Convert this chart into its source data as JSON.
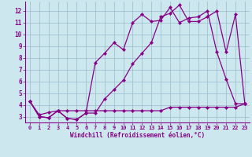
{
  "xlabel": "Windchill (Refroidissement éolien,°C)",
  "bg_color": "#cce8ee",
  "grid_color": "#99bbcc",
  "line_color": "#880088",
  "xlim": [
    -0.5,
    23.5
  ],
  "ylim": [
    2.5,
    12.8
  ],
  "yticks": [
    3,
    4,
    5,
    6,
    7,
    8,
    9,
    10,
    11,
    12
  ],
  "xticks": [
    0,
    1,
    2,
    3,
    4,
    5,
    6,
    7,
    8,
    9,
    10,
    11,
    12,
    13,
    14,
    15,
    16,
    17,
    18,
    19,
    20,
    21,
    22,
    23
  ],
  "series1_x": [
    0,
    1,
    2,
    3,
    4,
    5,
    6,
    7,
    8,
    9,
    10,
    11,
    12,
    13,
    14,
    15,
    16,
    17,
    18,
    19,
    20,
    21,
    22,
    23
  ],
  "series1_y": [
    4.3,
    3.0,
    2.9,
    3.5,
    2.85,
    2.75,
    3.3,
    3.3,
    4.5,
    5.3,
    6.1,
    7.5,
    8.4,
    9.3,
    11.5,
    11.8,
    12.5,
    11.1,
    11.1,
    11.5,
    12.0,
    8.5,
    11.7,
    4.1
  ],
  "series2_x": [
    0,
    1,
    2,
    3,
    4,
    5,
    6,
    7,
    8,
    9,
    10,
    11,
    12,
    13,
    14,
    15,
    16,
    17,
    18,
    19,
    20,
    21,
    22,
    23
  ],
  "series2_y": [
    4.3,
    3.0,
    2.9,
    3.5,
    2.85,
    2.75,
    3.3,
    7.6,
    8.4,
    9.3,
    8.7,
    11.0,
    11.7,
    11.1,
    11.2,
    12.3,
    11.0,
    11.4,
    11.5,
    12.0,
    8.5,
    6.2,
    4.1,
    4.1
  ],
  "series3_x": [
    0,
    1,
    2,
    3,
    4,
    5,
    6,
    7,
    8,
    9,
    10,
    11,
    12,
    13,
    14,
    15,
    16,
    17,
    18,
    19,
    20,
    21,
    22,
    23
  ],
  "series3_y": [
    4.3,
    3.15,
    3.35,
    3.5,
    3.5,
    3.5,
    3.5,
    3.5,
    3.5,
    3.5,
    3.5,
    3.5,
    3.5,
    3.5,
    3.5,
    3.8,
    3.8,
    3.8,
    3.8,
    3.8,
    3.8,
    3.8,
    3.8,
    4.1
  ],
  "tick_fontsize": 5.0,
  "label_fontsize": 5.5
}
